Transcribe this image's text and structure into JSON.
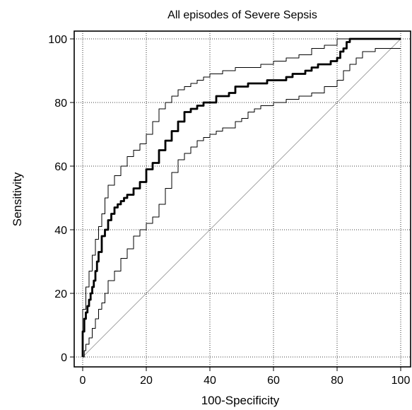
{
  "chart_data": {
    "type": "line",
    "title": "All episodes of Severe Sepsis",
    "xlabel": "100-Specificity",
    "ylabel": "Sensitivity",
    "xlim": [
      0,
      100
    ],
    "ylim": [
      0,
      100
    ],
    "xticks": [
      0,
      20,
      40,
      60,
      80,
      100
    ],
    "yticks": [
      0,
      20,
      40,
      60,
      80,
      100
    ],
    "grid": true,
    "series": [
      {
        "role": "roc-curve",
        "color": "#000000",
        "x": [
          0,
          0,
          0.5,
          1,
          1.5,
          2,
          2.5,
          3,
          3.5,
          4,
          4.5,
          5,
          6,
          7,
          8,
          9,
          10,
          11,
          12,
          13,
          14,
          16,
          18,
          20,
          20,
          22,
          24,
          26,
          28,
          30,
          32,
          34,
          36,
          38,
          40,
          42,
          44,
          46,
          48,
          50,
          52,
          55,
          58,
          60,
          62,
          64,
          66,
          68,
          70,
          72,
          74,
          76,
          78,
          80,
          81,
          82,
          83,
          84,
          85,
          86,
          88,
          90,
          95,
          100
        ],
        "y": [
          0,
          8,
          12,
          14,
          16,
          18,
          20,
          22,
          24,
          27,
          30,
          33,
          38,
          40,
          43,
          45,
          47,
          48,
          49,
          50,
          51,
          53,
          55,
          57,
          59,
          61,
          65,
          68,
          71,
          74,
          77,
          78,
          79,
          80,
          80,
          82,
          82,
          83,
          85,
          85,
          86,
          86,
          87,
          87,
          87,
          88,
          89,
          89,
          90,
          91,
          92,
          92,
          93,
          94,
          96,
          97,
          99,
          100,
          100,
          100,
          100,
          100,
          100,
          100
        ]
      },
      {
        "role": "upper-confidence-bound",
        "color": "#000000",
        "x": [
          0,
          0,
          1,
          2,
          3,
          4,
          5,
          6,
          7,
          8,
          10,
          12,
          14,
          16,
          18,
          20,
          22,
          24,
          26,
          28,
          30,
          32,
          34,
          36,
          38,
          40,
          44,
          48,
          52,
          56,
          60,
          64,
          68,
          72,
          76,
          80,
          82,
          84,
          88,
          92,
          96,
          100
        ],
        "y": [
          0,
          15,
          22,
          27,
          32,
          37,
          41,
          45,
          50,
          54,
          57,
          60,
          63,
          65,
          67,
          70,
          74,
          78,
          80,
          82,
          84,
          85,
          86,
          87,
          88,
          89,
          90,
          91,
          91,
          92,
          93,
          94,
          95,
          97,
          98,
          100,
          100,
          100,
          100,
          100,
          100,
          100
        ]
      },
      {
        "role": "lower-confidence-bound",
        "color": "#000000",
        "x": [
          0,
          0.5,
          1,
          2,
          3,
          4,
          5,
          6,
          7,
          8,
          10,
          12,
          14,
          16,
          18,
          20,
          22,
          24,
          26,
          28,
          30,
          32,
          34,
          36,
          38,
          40,
          42,
          44,
          46,
          48,
          50,
          52,
          54,
          56,
          58,
          60,
          64,
          68,
          72,
          76,
          80,
          82,
          84,
          86,
          88,
          92,
          96,
          100
        ],
        "y": [
          0,
          2,
          4,
          6,
          9,
          12,
          15,
          17,
          20,
          24,
          27,
          31,
          34,
          38,
          40,
          42,
          44,
          48,
          53,
          58,
          62,
          64,
          66,
          68,
          69,
          70,
          71,
          72,
          72,
          74,
          75,
          77,
          78,
          79,
          79,
          80,
          81,
          82,
          83,
          85,
          87,
          90,
          92,
          94,
          96,
          97,
          97,
          97
        ]
      },
      {
        "role": "reference-diagonal",
        "color": "#999999",
        "x": [
          0,
          100
        ],
        "y": [
          0,
          100
        ]
      }
    ]
  }
}
